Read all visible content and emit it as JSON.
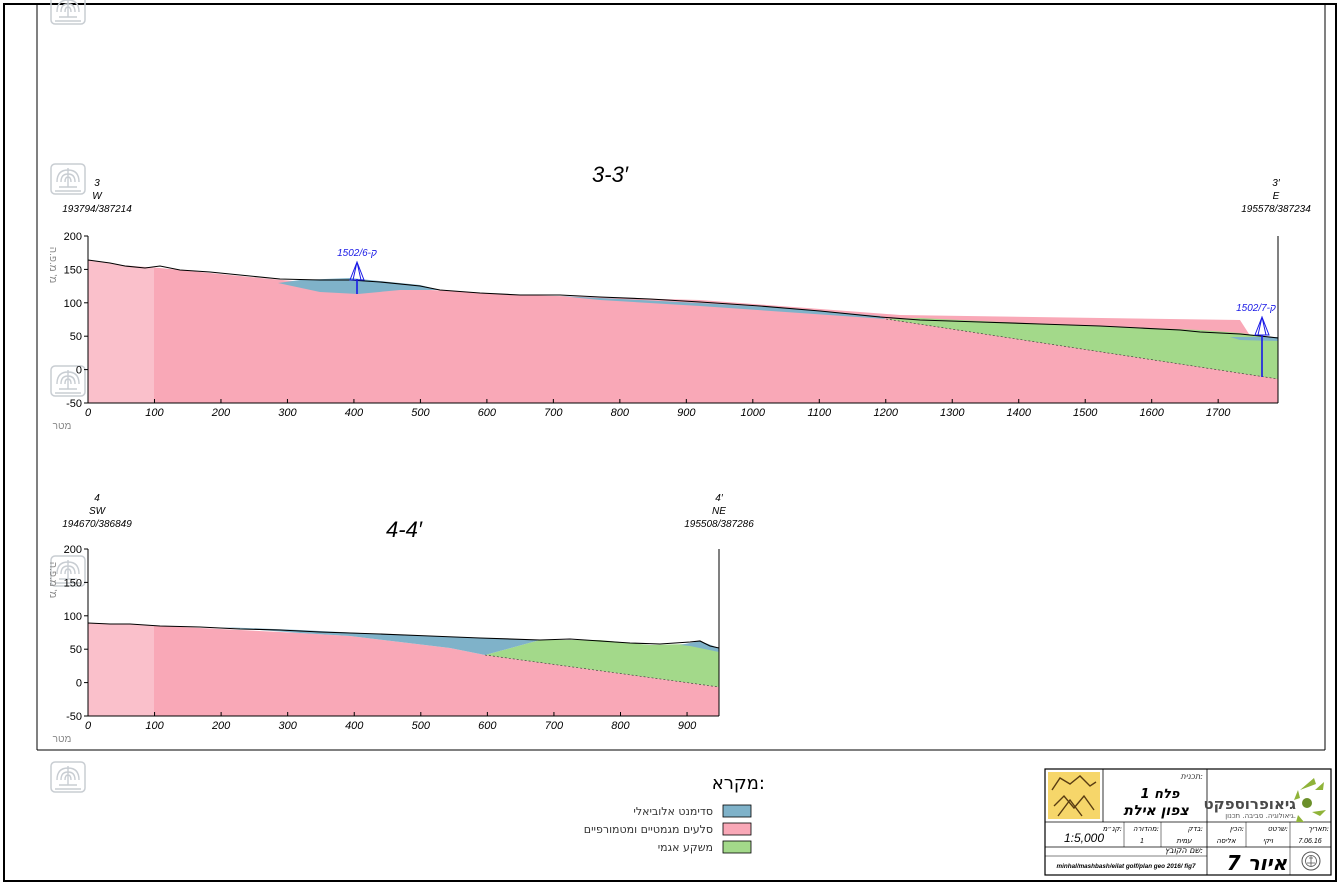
{
  "colors": {
    "alluvial": "#7fb2c9",
    "magmatic": "#f9a8b7",
    "lacustrine": "#a3d98a",
    "drill": "#1a1ae6",
    "frame": "#000000",
    "emblem": "#c8cdd2"
  },
  "section_33": {
    "title": "3-3′",
    "left_point": {
      "id": "3",
      "direction": "W",
      "coords": "193794/387214"
    },
    "right_point": {
      "id": "3′",
      "direction": "E",
      "coords": "195578/387234"
    },
    "y_axis_label": "מ' מ.פ.ה",
    "x_axis_label": "מטר",
    "x_ticks": [
      0,
      100,
      200,
      300,
      400,
      500,
      600,
      700,
      800,
      900,
      1000,
      1100,
      1200,
      1300,
      1400,
      1500,
      1600,
      1700
    ],
    "y_ticks": [
      -50,
      0,
      50,
      100,
      150,
      200
    ],
    "xlim": [
      0,
      1790
    ],
    "ylim": [
      -50,
      200
    ],
    "boreholes": [
      {
        "label": "1502/6-ק",
        "x": 405,
        "top": 128,
        "bottom": 110
      },
      {
        "label": "1502/7-ק",
        "x": 1765,
        "top": 47,
        "bottom": -15
      }
    ]
  },
  "section_44": {
    "title": "4-4′",
    "left_point": {
      "id": "4",
      "direction": "SW",
      "coords": "194670/386849"
    },
    "right_point": {
      "id": "4′",
      "direction": "NE",
      "coords": "195508/387286"
    },
    "y_axis_label": "מ' מ.פ.ה",
    "x_axis_label": "מטר",
    "x_ticks": [
      0,
      100,
      200,
      300,
      400,
      500,
      600,
      700,
      800,
      900
    ],
    "y_ticks": [
      -50,
      0,
      50,
      100,
      150,
      200
    ],
    "xlim": [
      0,
      948
    ],
    "ylim": [
      -50,
      200
    ]
  },
  "legend": {
    "title": "מקרא:",
    "items": [
      {
        "label": "סדימנט אלוביאלי",
        "color": "#7fb2c9"
      },
      {
        "label": "סלעים מגמטיים ומטמורפיים",
        "color": "#f9a8b7"
      },
      {
        "label": "משקע אגמי",
        "color": "#a3d98a"
      }
    ]
  },
  "title_block": {
    "plan_label": "תכנית:",
    "plan_line1": "פלח 1",
    "plan_line2": "צפון אילת",
    "company": "גיאופרוספקט",
    "company_sub": "גיאולוגיה. סביבה. תכנון.",
    "date_label": "תאריך:",
    "date_value": "7.06.16",
    "drawn_label": "שרטט:",
    "drawn_value": "ויקי",
    "prepared_label": "הכין:",
    "prepared_value": "אליסה",
    "checked_label": "בדק:",
    "checked_value": "עמית",
    "edition_label": "מהדורה:",
    "edition_value": "1",
    "scale_label": "קנ״מ:",
    "scale_value": "1:5,000",
    "file_label": "שם הקובץ:",
    "file_value": "minhal/mashbash/eilat golf/plan geo 2016/ fig7",
    "figure": "איור 7"
  }
}
